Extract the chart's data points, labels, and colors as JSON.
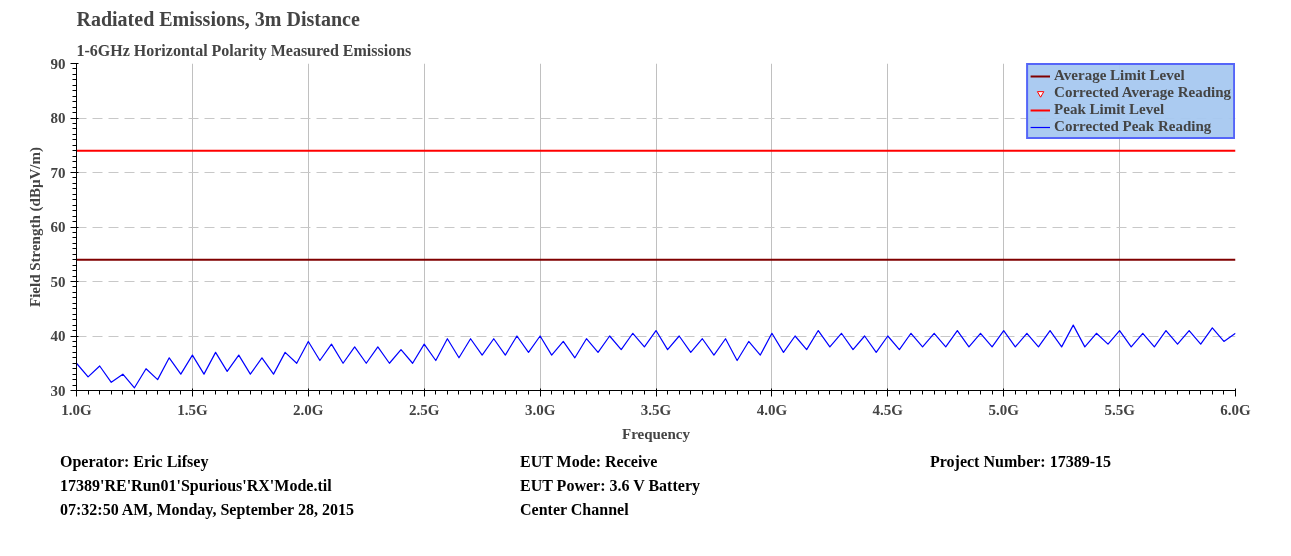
{
  "chart_data": {
    "type": "line",
    "title": "Radiated Emissions, 3m Distance",
    "subtitle": "1-6GHz Horizontal Polarity Measured Emissions",
    "xlabel": "Frequency",
    "ylabel": "Field Strength (dBµV/m)",
    "xlim": [
      1.0,
      6.0
    ],
    "ylim": [
      30,
      90
    ],
    "xticks": [
      {
        "value": 1.0,
        "label": "1.0G"
      },
      {
        "value": 1.5,
        "label": "1.5G"
      },
      {
        "value": 2.0,
        "label": "2.0G"
      },
      {
        "value": 2.5,
        "label": "2.5G"
      },
      {
        "value": 3.0,
        "label": "3.0G"
      },
      {
        "value": 3.5,
        "label": "3.5G"
      },
      {
        "value": 4.0,
        "label": "4.0G"
      },
      {
        "value": 4.5,
        "label": "4.5G"
      },
      {
        "value": 5.0,
        "label": "5.0G"
      },
      {
        "value": 5.5,
        "label": "5.5G"
      },
      {
        "value": 6.0,
        "label": "6.0G"
      }
    ],
    "yticks": [
      30,
      40,
      50,
      60,
      70,
      80,
      90
    ],
    "grid": true,
    "legend": "top right",
    "line_style": "solid",
    "series": [
      {
        "name": "Average Limit Level",
        "color": "#800000",
        "marker": "none",
        "x": [
          1.0,
          6.0
        ],
        "values": [
          54,
          54
        ]
      },
      {
        "name": "Corrected Average Reading",
        "type": "scatter",
        "color": "#ff0000",
        "marker": "triangle"
      },
      {
        "name": "Peak Limit Level",
        "color": "#ff0000",
        "marker": "none",
        "x": [
          1.0,
          6.0
        ],
        "values": [
          74,
          74
        ]
      },
      {
        "name": "Corrected Peak Reading",
        "color": "#0000ff",
        "marker": "none",
        "x": [
          1.0,
          1.05,
          1.1,
          1.15,
          1.2,
          1.25,
          1.3,
          1.35,
          1.4,
          1.45,
          1.5,
          1.55,
          1.6,
          1.65,
          1.7,
          1.75,
          1.8,
          1.85,
          1.9,
          1.95,
          2.0,
          2.05,
          2.1,
          2.15,
          2.2,
          2.25,
          2.3,
          2.35,
          2.4,
          2.45,
          2.5,
          2.55,
          2.6,
          2.65,
          2.7,
          2.75,
          2.8,
          2.85,
          2.9,
          2.95,
          3.0,
          3.05,
          3.1,
          3.15,
          3.2,
          3.25,
          3.3,
          3.35,
          3.4,
          3.45,
          3.5,
          3.55,
          3.6,
          3.65,
          3.7,
          3.75,
          3.8,
          3.85,
          3.9,
          3.95,
          4.0,
          4.05,
          4.1,
          4.15,
          4.2,
          4.25,
          4.3,
          4.35,
          4.4,
          4.45,
          4.5,
          4.55,
          4.6,
          4.65,
          4.7,
          4.75,
          4.8,
          4.85,
          4.9,
          4.95,
          5.0,
          5.05,
          5.1,
          5.15,
          5.2,
          5.25,
          5.3,
          5.35,
          5.4,
          5.45,
          5.5,
          5.55,
          5.6,
          5.65,
          5.7,
          5.75,
          5.8,
          5.85,
          5.9,
          5.95,
          6.0
        ],
        "values": [
          35,
          32.5,
          34.5,
          31.5,
          33,
          30.5,
          34,
          32,
          36,
          33,
          36.5,
          33,
          37,
          33.5,
          36.5,
          33,
          36,
          33,
          37,
          35,
          39,
          35.5,
          38.5,
          35,
          38,
          35,
          38,
          35,
          37.5,
          35,
          38.5,
          35.5,
          39.5,
          36,
          39.5,
          36.5,
          39.5,
          36.5,
          40,
          37,
          40,
          36.5,
          39,
          36,
          39.5,
          37,
          40,
          37.5,
          40.5,
          38,
          41,
          37.5,
          40,
          37,
          39.5,
          36.5,
          39.5,
          35.5,
          39,
          36.5,
          40.5,
          37,
          40,
          37.5,
          41,
          38,
          40.5,
          37.5,
          40,
          37,
          40,
          37.5,
          40.5,
          38,
          40.5,
          38,
          41,
          38,
          40.5,
          38,
          41,
          38,
          40.5,
          38,
          41,
          38,
          42,
          38,
          40.5,
          38.5,
          41,
          38,
          40.5,
          38,
          41,
          38.5,
          41,
          38.5,
          41.5,
          39,
          40.5
        ]
      }
    ],
    "annotations": [
      "Operator: Eric Lifsey",
      "17389'RE'Run01'Spurious'RX'Mode.til",
      "07:32:50 AM, Monday, September 28, 2015",
      "EUT Mode: Receive",
      "EUT Power: 3.6 V Battery",
      "Center Channel",
      "Project Number: 17389-15"
    ]
  }
}
